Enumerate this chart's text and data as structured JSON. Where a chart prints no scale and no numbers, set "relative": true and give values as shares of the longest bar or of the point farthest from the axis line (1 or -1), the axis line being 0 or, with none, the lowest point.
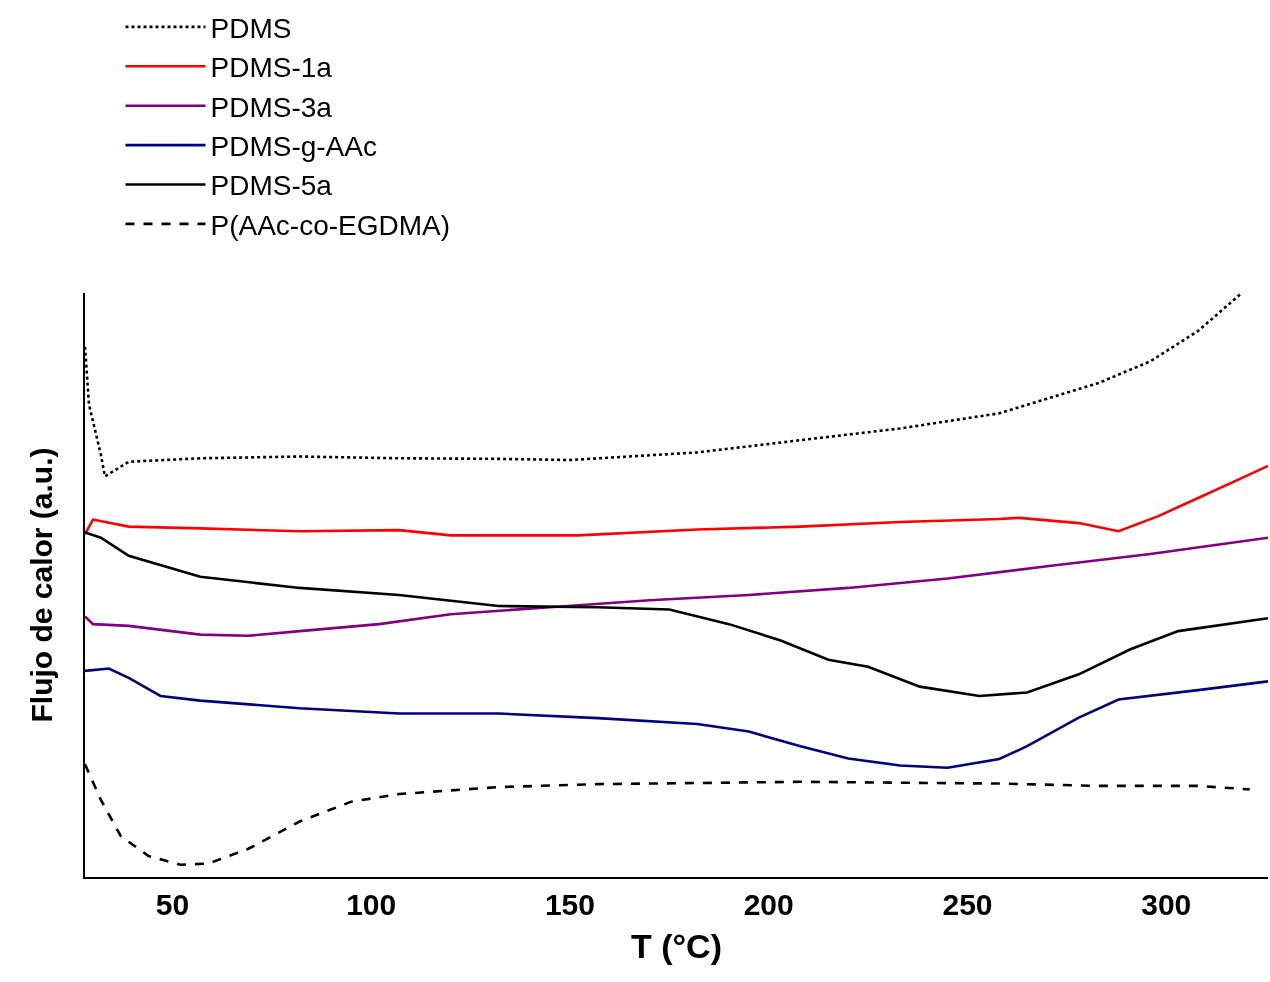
{
  "chart_data": {
    "type": "line",
    "xlabel": "T (°C)",
    "ylabel": "Flujo de calor (a.u.)",
    "relative": true,
    "xlim": [
      28,
      325.6
    ],
    "xticks": [
      50,
      100,
      150,
      200,
      250,
      300
    ],
    "grid": false,
    "legend": "top left",
    "marker": "none",
    "series": [
      {
        "name": "PDMS",
        "color": "#000000",
        "line_style": "dotted",
        "x": [
          28,
          29,
          32,
          33,
          39,
          57,
          82,
          107,
          132,
          150,
          182,
          208,
          233,
          258,
          283,
          296,
          308,
          319
        ],
        "values": [
          0.908,
          0.809,
          0.723,
          0.686,
          0.711,
          0.717,
          0.72,
          0.717,
          0.716,
          0.714,
          0.727,
          0.748,
          0.768,
          0.794,
          0.846,
          0.883,
          0.935,
          1.0
        ]
      },
      {
        "name": "PDMS-1a",
        "color": "#ff0000",
        "line_style": "solid",
        "x": [
          28,
          30,
          39,
          57,
          82,
          107,
          120,
          132,
          152,
          182,
          208,
          233,
          258,
          263,
          278,
          288,
          298,
          308,
          318,
          325.6
        ],
        "values": [
          0.587,
          0.612,
          0.6,
          0.597,
          0.592,
          0.594,
          0.585,
          0.585,
          0.585,
          0.595,
          0.6,
          0.608,
          0.613,
          0.615,
          0.606,
          0.592,
          0.618,
          0.649,
          0.68,
          0.704
        ]
      },
      {
        "name": "PDMS-3a",
        "color": "#800080",
        "line_style": "solid",
        "x": [
          28,
          30,
          39,
          57,
          69,
          82,
          102,
          120,
          145,
          170,
          195,
          220,
          245,
          270,
          296,
          325.6
        ],
        "values": [
          0.446,
          0.433,
          0.43,
          0.415,
          0.413,
          0.421,
          0.433,
          0.45,
          0.462,
          0.474,
          0.483,
          0.495,
          0.511,
          0.532,
          0.553,
          0.581
        ]
      },
      {
        "name": "PDMS-g-AAc",
        "color": "#000080",
        "line_style": "solid",
        "x": [
          28,
          34,
          39,
          47,
          57,
          82,
          107,
          132,
          157,
          182,
          195,
          208,
          220,
          233,
          245,
          258,
          265,
          278,
          288,
          308,
          325.6
        ],
        "values": [
          0.353,
          0.357,
          0.341,
          0.31,
          0.302,
          0.289,
          0.28,
          0.28,
          0.272,
          0.262,
          0.249,
          0.224,
          0.203,
          0.191,
          0.187,
          0.202,
          0.224,
          0.273,
          0.304,
          0.32,
          0.335
        ]
      },
      {
        "name": "PDMS-5a",
        "color": "#000000",
        "line_style": "solid",
        "x": [
          28,
          32,
          39,
          57,
          82,
          107,
          132,
          157,
          175,
          190,
          203,
          215,
          225,
          238,
          253,
          265,
          278,
          291,
          303,
          325.6
        ],
        "values": [
          0.59,
          0.581,
          0.55,
          0.514,
          0.495,
          0.483,
          0.464,
          0.462,
          0.458,
          0.433,
          0.405,
          0.372,
          0.36,
          0.326,
          0.31,
          0.316,
          0.347,
          0.39,
          0.421,
          0.443
        ]
      },
      {
        "name": "P(AAc-co-EGDMA)",
        "color": "#000000",
        "line_style": "dashed",
        "x": [
          28,
          32,
          37,
          44,
          52,
          59,
          69,
          82,
          95,
          107,
          132,
          157,
          208,
          258,
          283,
          308,
          321
        ],
        "values": [
          0.193,
          0.132,
          0.07,
          0.036,
          0.021,
          0.023,
          0.048,
          0.095,
          0.129,
          0.142,
          0.154,
          0.159,
          0.163,
          0.16,
          0.156,
          0.156,
          0.15
        ]
      }
    ]
  }
}
